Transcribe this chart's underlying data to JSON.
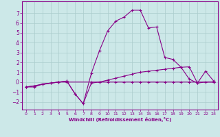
{
  "xlabel": "Windchill (Refroidissement éolien,°C)",
  "background_color": "#cce8e8",
  "grid_color": "#aacccc",
  "line_color": "#880088",
  "xlim": [
    -0.5,
    23.5
  ],
  "ylim": [
    -2.8,
    8.2
  ],
  "yticks": [
    -2,
    -1,
    0,
    1,
    2,
    3,
    4,
    5,
    6,
    7
  ],
  "xticks": [
    0,
    1,
    2,
    3,
    4,
    5,
    6,
    7,
    8,
    9,
    10,
    11,
    12,
    13,
    14,
    15,
    16,
    17,
    18,
    19,
    20,
    21,
    22,
    23
  ],
  "series1_x": [
    0,
    1,
    2,
    3,
    4,
    5,
    6,
    7,
    8,
    9,
    10,
    11,
    12,
    13,
    14,
    15,
    16,
    17,
    18,
    19,
    20,
    21,
    22,
    23
  ],
  "series1_y": [
    -0.5,
    -0.5,
    -0.2,
    -0.1,
    0.0,
    0.1,
    -1.2,
    -2.2,
    0.9,
    3.2,
    5.2,
    6.2,
    6.6,
    7.3,
    7.3,
    5.5,
    5.6,
    2.5,
    2.3,
    1.5,
    0.3,
    -0.1,
    1.1,
    0.1
  ],
  "series2_x": [
    0,
    1,
    2,
    3,
    4,
    5,
    6,
    7,
    8,
    9,
    10,
    11,
    12,
    13,
    14,
    15,
    16,
    17,
    18,
    19,
    20,
    21,
    22,
    23
  ],
  "series2_y": [
    -0.5,
    -0.4,
    -0.2,
    -0.1,
    0.0,
    0.1,
    -1.2,
    -2.2,
    -0.1,
    0.0,
    0.2,
    0.4,
    0.6,
    0.8,
    1.0,
    1.1,
    1.2,
    1.3,
    1.4,
    1.5,
    1.55,
    -0.1,
    0.0,
    0.0
  ],
  "series3_x": [
    0,
    4,
    5,
    8,
    9,
    10,
    11,
    12,
    13,
    14,
    15,
    16,
    17,
    18,
    19,
    20,
    23
  ],
  "series3_y": [
    -0.5,
    0.0,
    0.0,
    0.0,
    0.0,
    0.0,
    0.0,
    0.0,
    0.0,
    0.0,
    0.0,
    0.0,
    0.0,
    0.0,
    0.0,
    0.0,
    0.0
  ]
}
